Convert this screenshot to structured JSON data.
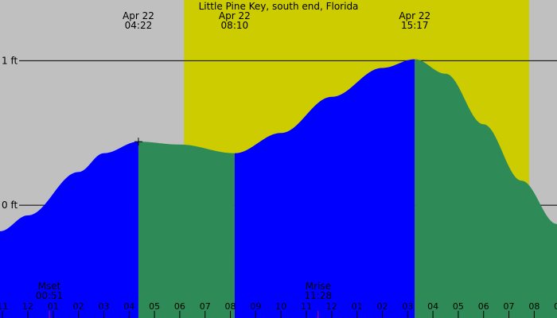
{
  "chart_data": {
    "type": "area",
    "title": "Little Pine Key, south end, Florida",
    "x_axis": {
      "unit": "hour of day",
      "range_hours": [
        0.9,
        22.9
      ],
      "tick_labels": [
        "11",
        "12",
        "01",
        "02",
        "03",
        "04",
        "05",
        "06",
        "07",
        "08",
        "09",
        "10",
        "11",
        "12",
        "01",
        "02",
        "03",
        "04",
        "05",
        "06",
        "07",
        "08",
        "09"
      ],
      "tick_hours": [
        1,
        2,
        3,
        4,
        5,
        6,
        7,
        8,
        9,
        10,
        11,
        12,
        13,
        14,
        15,
        16,
        17,
        18,
        19,
        20,
        21,
        22,
        23
      ]
    },
    "y_axis": {
      "unit": "ft",
      "range": [
        -0.78,
        1.42
      ],
      "reference_lines": [
        {
          "value": 1,
          "label": "1 ft"
        },
        {
          "value": 0,
          "label": "0 ft"
        }
      ]
    },
    "daylight": {
      "start_hour": 8.167,
      "end_hour": 21.8,
      "color": "#cccc00"
    },
    "colors": {
      "background": "#c0c0c0",
      "rising": "#0000ff",
      "falling": "#2e8b57"
    },
    "tide_events": [
      {
        "type": "high",
        "hour": 6.367,
        "height": 0.44,
        "date": "Apr 22",
        "time": "04:22"
      },
      {
        "type": "low",
        "hour": 10.167,
        "height": 0.36,
        "date": "Apr 22",
        "time": "08:10"
      },
      {
        "type": "high",
        "hour": 17.283,
        "height": 1.01,
        "date": "Apr 22",
        "time": "15:17"
      }
    ],
    "series": [
      {
        "hours": [
          0.9,
          2.0,
          4.0,
          5.0,
          6.367,
          8.0,
          10.167,
          12.0,
          14.0,
          16.0,
          17.283,
          18.5,
          20.0,
          21.5,
          22.9
        ],
        "heights": [
          -0.18,
          -0.07,
          0.23,
          0.36,
          0.44,
          0.42,
          0.36,
          0.5,
          0.75,
          0.95,
          1.01,
          0.91,
          0.56,
          0.17,
          -0.13
        ]
      }
    ],
    "moon_events": [
      {
        "label": "Mset",
        "time": "00:51",
        "hour": 2.85
      },
      {
        "label": "Mrise",
        "time": "11:28",
        "hour": 13.467
      }
    ]
  }
}
